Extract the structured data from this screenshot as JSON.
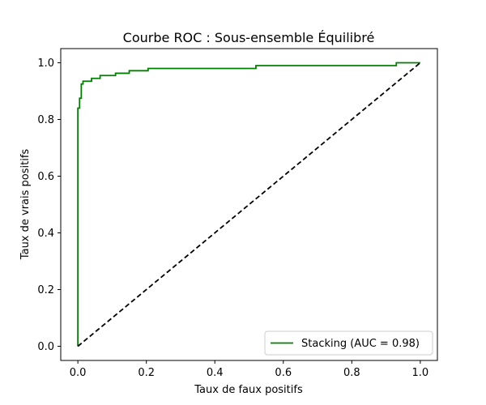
{
  "chart_data": {
    "type": "line",
    "title": "Courbe ROC : Sous-ensemble Équilibré",
    "xlabel": "Taux de faux positifs",
    "ylabel": "Taux de vrais positifs",
    "xlim": [
      -0.05,
      1.05
    ],
    "ylim": [
      -0.05,
      1.05
    ],
    "x_ticks": [
      0.0,
      0.2,
      0.4,
      0.6,
      0.8,
      1.0
    ],
    "x_tick_labels": [
      "0.0",
      "0.2",
      "0.4",
      "0.6",
      "0.8",
      "1.0"
    ],
    "y_ticks": [
      0.0,
      0.2,
      0.4,
      0.6,
      0.8,
      1.0
    ],
    "y_tick_labels": [
      "0.0",
      "0.2",
      "0.4",
      "0.6",
      "0.8",
      "1.0"
    ],
    "grid": false,
    "legend_position": "lower-right",
    "series": [
      {
        "name": "Stacking (AUC = 0.98)",
        "color": "#008000",
        "style": "solid",
        "step": true,
        "x": [
          0.0,
          0.0,
          0.005,
          0.005,
          0.01,
          0.01,
          0.015,
          0.015,
          0.04,
          0.04,
          0.065,
          0.065,
          0.11,
          0.11,
          0.15,
          0.15,
          0.205,
          0.205,
          0.52,
          0.52,
          0.93,
          0.93,
          1.0
        ],
        "y": [
          0.0,
          0.84,
          0.84,
          0.875,
          0.875,
          0.925,
          0.925,
          0.935,
          0.935,
          0.945,
          0.945,
          0.955,
          0.955,
          0.963,
          0.963,
          0.972,
          0.972,
          0.98,
          0.98,
          0.99,
          0.99,
          1.0,
          1.0
        ]
      },
      {
        "name": "",
        "color": "#000000",
        "style": "dashed",
        "step": false,
        "x": [
          0.0,
          1.0
        ],
        "y": [
          0.0,
          1.0
        ]
      }
    ]
  }
}
